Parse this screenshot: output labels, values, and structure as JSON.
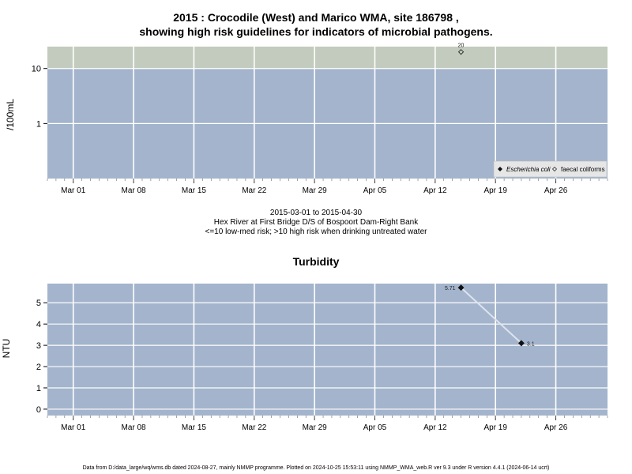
{
  "title_line1": "2015 : Crocodile (West) and Marico WMA, site 186798 ,",
  "title_line2": "showing high risk guidelines for indicators of microbial pathogens.",
  "date_range": "2015-03-01 to 2015-04-30",
  "site_description": "Hex River at First Bridge D/S of Bospoort Dam-Right Bank",
  "risk_note": "<=10 low-med risk; >10 high risk when drinking untreated water",
  "footer": "Data from D:/data_large/wq/wms.db dated 2024-08-27, mainly NMMP programme. Plotted on 2024-10-25 15:53:11 using NMMP_WMA_web.R ver 9.3 under R version 4.4.1 (2024-06-14 ucrt)",
  "colors": {
    "panel": "#a3b4cc",
    "high_risk_band": "#c2cbbd",
    "grid": "#ffffff",
    "line": "#dde3ee"
  },
  "chart_data": [
    {
      "type": "scatter",
      "ylabel": "/100mL",
      "yscale": "log",
      "ylim": [
        0.1,
        25
      ],
      "xlim": [
        "2015-02-26",
        "2015-05-02"
      ],
      "x_ticks": [
        "Mar 01",
        "Mar 08",
        "Mar 15",
        "Mar 22",
        "Mar 29",
        "Apr 05",
        "Apr 12",
        "Apr 19",
        "Apr 26"
      ],
      "y_ticks": [
        1,
        10
      ],
      "high_risk_threshold": 10,
      "legend_position": "bottom-right",
      "series": [
        {
          "name": "Escherichia coli",
          "marker": "filled-diamond",
          "points": []
        },
        {
          "name": "faecal coliforms",
          "marker": "open-diamond",
          "points": [
            {
              "x": "2015-04-15",
              "y": 20,
              "label": "20"
            }
          ]
        }
      ]
    },
    {
      "type": "line",
      "title": "Turbidity",
      "ylabel": "NTU",
      "ylim": [
        -0.3,
        5.9
      ],
      "xlim": [
        "2015-02-26",
        "2015-05-02"
      ],
      "x_ticks": [
        "Mar 01",
        "Mar 08",
        "Mar 15",
        "Mar 22",
        "Mar 29",
        "Apr 05",
        "Apr 12",
        "Apr 19",
        "Apr 26"
      ],
      "y_ticks": [
        0,
        1,
        2,
        3,
        4,
        5
      ],
      "points": [
        {
          "x": "2015-04-15",
          "y": 5.71,
          "label": "5.71"
        },
        {
          "x": "2015-04-22",
          "y": 3.1,
          "label": "3.1"
        }
      ]
    }
  ]
}
